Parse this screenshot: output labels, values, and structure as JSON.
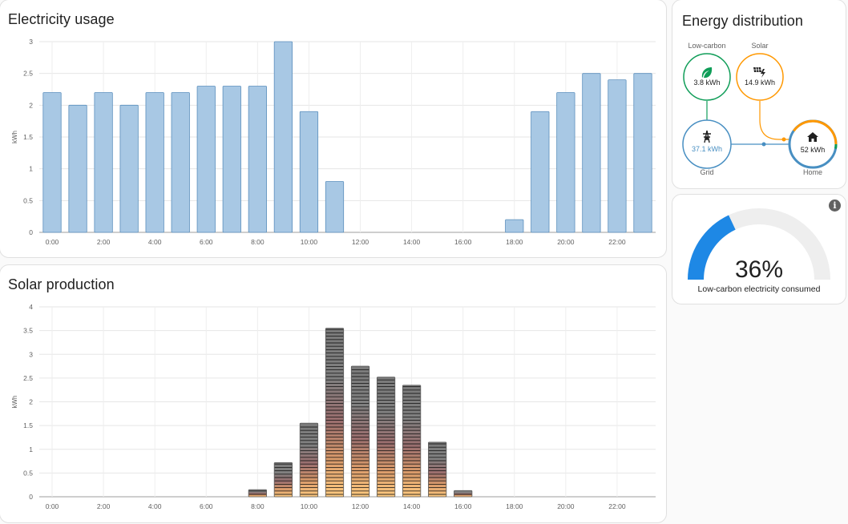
{
  "usage": {
    "title": "Electricity usage",
    "chart_data": {
      "type": "bar",
      "title": "Electricity usage",
      "ylabel": "kWh",
      "ylim": [
        0,
        3
      ],
      "yticks": [
        "0",
        "0.5",
        "1",
        "1.5",
        "2",
        "2.5",
        "3"
      ],
      "x_tick_labels": [
        "0:00",
        "2:00",
        "4:00",
        "6:00",
        "8:00",
        "10:00",
        "12:00",
        "14:00",
        "16:00",
        "18:00",
        "20:00",
        "22:00"
      ],
      "categories": [
        "0:00",
        "1:00",
        "2:00",
        "3:00",
        "4:00",
        "5:00",
        "6:00",
        "7:00",
        "8:00",
        "9:00",
        "10:00",
        "11:00",
        "12:00",
        "13:00",
        "14:00",
        "15:00",
        "16:00",
        "17:00",
        "18:00",
        "19:00",
        "20:00",
        "21:00",
        "22:00",
        "23:00"
      ],
      "values": [
        2.2,
        2.0,
        2.2,
        2.0,
        2.2,
        2.2,
        2.3,
        2.3,
        2.3,
        3.0,
        1.9,
        0.8,
        0,
        0,
        0,
        0,
        0,
        0,
        0.2,
        1.9,
        2.2,
        2.5,
        2.4,
        2.5
      ],
      "color": "#a8c8e4"
    }
  },
  "solar": {
    "title": "Solar production",
    "chart_data": {
      "type": "bar",
      "title": "Solar production",
      "ylabel": "kWh",
      "ylim": [
        0,
        4
      ],
      "yticks": [
        "0",
        "0.5",
        "1",
        "1.5",
        "2",
        "2.5",
        "3",
        "3.5",
        "4"
      ],
      "x_tick_labels": [
        "0:00",
        "2:00",
        "4:00",
        "6:00",
        "8:00",
        "10:00",
        "12:00",
        "14:00",
        "16:00",
        "18:00",
        "20:00",
        "22:00"
      ],
      "categories": [
        "0:00",
        "1:00",
        "2:00",
        "3:00",
        "4:00",
        "5:00",
        "6:00",
        "7:00",
        "8:00",
        "9:00",
        "10:00",
        "11:00",
        "12:00",
        "13:00",
        "14:00",
        "15:00",
        "16:00",
        "17:00",
        "18:00",
        "19:00",
        "20:00",
        "21:00",
        "22:00",
        "23:00"
      ],
      "values": [
        0,
        0,
        0,
        0,
        0,
        0,
        0,
        0,
        0.15,
        0.72,
        1.55,
        3.55,
        2.75,
        2.52,
        2.35,
        1.15,
        0.13,
        0,
        0,
        0,
        0,
        0,
        0,
        0
      ],
      "color": "#888888"
    }
  },
  "distribution": {
    "title": "Energy distribution",
    "low_carbon": {
      "label": "Low-carbon",
      "value": "3.8 kWh",
      "color": "#0f9d58",
      "icon": "leaf-icon"
    },
    "solar": {
      "label": "Solar",
      "value": "14.9 kWh",
      "color": "#ff9800",
      "icon": "solar-panel-icon"
    },
    "grid": {
      "label": "Grid",
      "value": "37.1 kWh",
      "color": "#488fc2",
      "icon": "transmission-tower-icon"
    },
    "home": {
      "label": "Home",
      "value": "52 kWh",
      "color": "#488fc2",
      "icon": "home-icon"
    }
  },
  "gauge": {
    "value_text": "36%",
    "value": 36,
    "label": "Low-carbon electricity consumed",
    "color": "#1e88e5",
    "info_icon": "info-icon"
  }
}
